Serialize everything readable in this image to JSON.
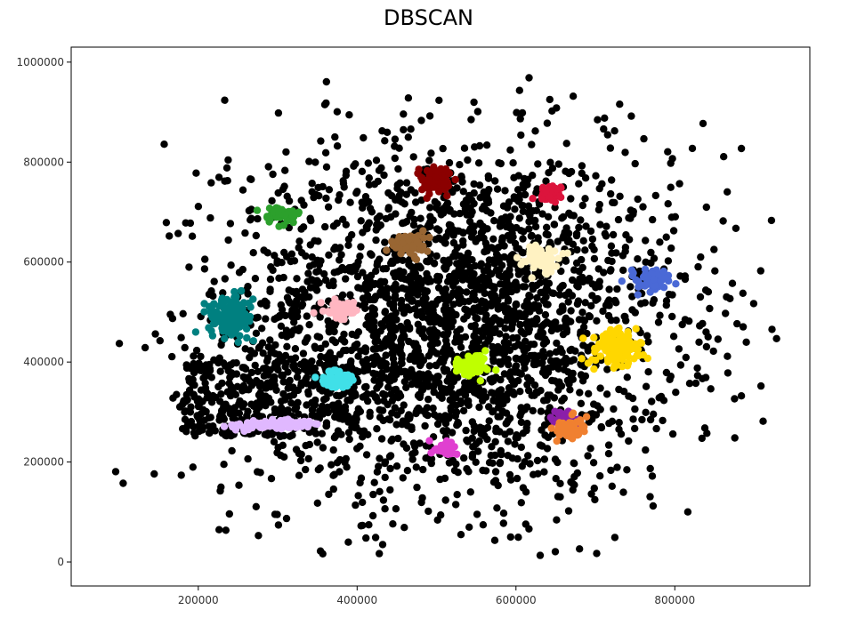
{
  "chart_data": {
    "type": "scatter",
    "title": "DBSCAN",
    "xlabel": "",
    "ylabel": "",
    "xlim": [
      40000,
      970000
    ],
    "ylim": [
      -48000,
      1030000
    ],
    "x_ticks": [
      200000,
      400000,
      600000,
      800000
    ],
    "y_ticks": [
      0,
      200000,
      400000,
      600000,
      800000,
      1000000
    ],
    "grid": false,
    "legend": "none",
    "noise_color": "#000000",
    "series": [
      {
        "center": [
          497000,
          765000
        ],
        "spread": [
          9000,
          14000
        ],
        "count": 70,
        "color": "#8b0000"
      },
      {
        "center": [
          642000,
          740000
        ],
        "spread": [
          8000,
          8000
        ],
        "count": 50,
        "color": "#dc143c"
      },
      {
        "center": [
          305000,
          695000
        ],
        "spread": [
          9000,
          8000
        ],
        "count": 50,
        "color": "#2ca02c"
      },
      {
        "center": [
          463000,
          635000
        ],
        "spread": [
          10000,
          12000
        ],
        "count": 70,
        "color": "#996633"
      },
      {
        "center": [
          632000,
          605000
        ],
        "spread": [
          11000,
          11000
        ],
        "count": 60,
        "color": "#fff2c2"
      },
      {
        "center": [
          772000,
          565000
        ],
        "spread": [
          11000,
          11000
        ],
        "count": 60,
        "color": "#4a69d6"
      },
      {
        "center": [
          380000,
          505000
        ],
        "spread": [
          11000,
          8000
        ],
        "count": 50,
        "color": "#ffb6c1"
      },
      {
        "center": [
          242000,
          490000
        ],
        "spread": [
          14000,
          20000
        ],
        "count": 130,
        "color": "#008080"
      },
      {
        "center": [
          727000,
          430000
        ],
        "spread": [
          16000,
          18000
        ],
        "count": 130,
        "color": "#ffd700"
      },
      {
        "center": [
          545000,
          395000
        ],
        "spread": [
          11000,
          9000
        ],
        "count": 60,
        "color": "#bfff00"
      },
      {
        "center": [
          374000,
          365000
        ],
        "spread": [
          10000,
          9000
        ],
        "count": 50,
        "color": "#40e0e8"
      },
      {
        "center": [
          293000,
          275000
        ],
        "spread": [
          26000,
          5000
        ],
        "count": 110,
        "color": "#e0b8ff"
      },
      {
        "center": [
          660000,
          285000
        ],
        "spread": [
          8000,
          8000
        ],
        "count": 40,
        "color": "#8b1fa9"
      },
      {
        "center": [
          667000,
          265000
        ],
        "spread": [
          9000,
          10000
        ],
        "count": 60,
        "color": "#f08030"
      },
      {
        "center": [
          511000,
          227000
        ],
        "spread": [
          7000,
          8000
        ],
        "count": 40,
        "color": "#e040d0"
      }
    ]
  }
}
